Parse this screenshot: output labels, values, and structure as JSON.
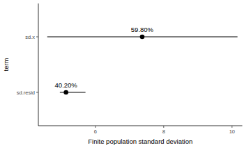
{
  "chart_data": {
    "type": "pointrange",
    "orientation": "horizontal",
    "x_label": "Finite population standard deviation",
    "y_label": "term",
    "categories": [
      "sd.x",
      "sd.resid"
    ],
    "values": [
      7.37,
      5.14
    ],
    "lower": [
      4.59,
      4.96
    ],
    "upper": [
      10.16,
      5.71
    ],
    "annotations": [
      "59.80%",
      "40.20%"
    ],
    "xlim": [
      4.33,
      10.3
    ],
    "xticks": [
      6,
      8,
      10
    ],
    "grid": false,
    "color": "#000000"
  }
}
